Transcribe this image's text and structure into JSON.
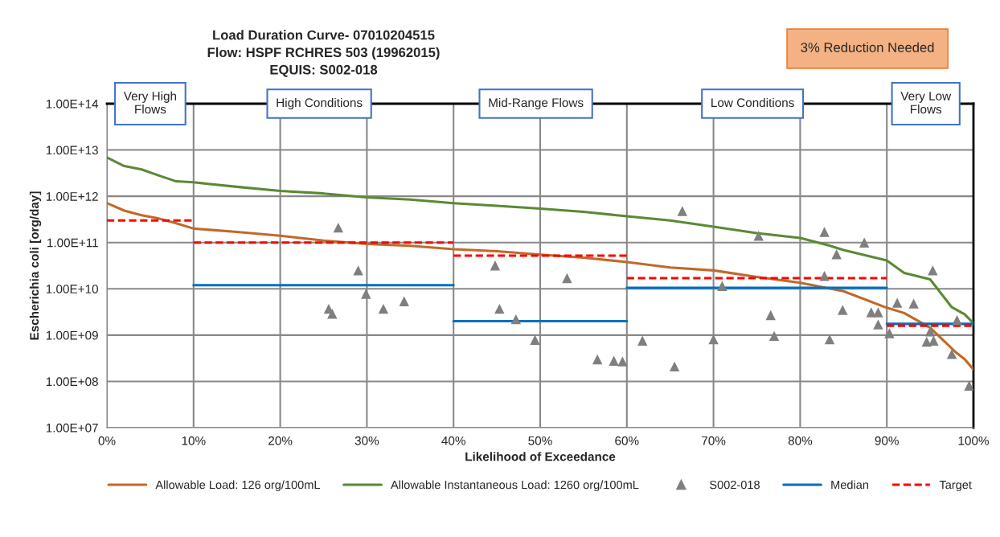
{
  "chart_data": {
    "type": "line",
    "title": "Load Duration Curve- 07010204515\nFlow: HSPF RCHRES 503 (19962015)\nEQUIS: S002-018",
    "xlabel": "Likelihood of Exceedance",
    "ylabel": "Escherichia coli [org/day]",
    "log": "y",
    "grid": true,
    "legend": "bottom",
    "xlim": [
      0,
      100
    ],
    "xticks": [
      {
        "value": 0,
        "label": "0%"
      },
      {
        "value": 10,
        "label": "10%"
      },
      {
        "value": 20,
        "label": "20%"
      },
      {
        "value": 30,
        "label": "30%"
      },
      {
        "value": 40,
        "label": "40%"
      },
      {
        "value": 50,
        "label": "50%"
      },
      {
        "value": 60,
        "label": "60%"
      },
      {
        "value": 70,
        "label": "70%"
      },
      {
        "value": 80,
        "label": "80%"
      },
      {
        "value": 90,
        "label": "90%"
      },
      {
        "value": 100,
        "label": "100%"
      }
    ],
    "ylim": [
      10000000.0,
      100000000000000.0
    ],
    "yticks": [
      {
        "value": 10000000.0,
        "label": "1.00E+07"
      },
      {
        "value": 100000000.0,
        "label": "1.00E+08"
      },
      {
        "value": 1000000000.0,
        "label": "1.00E+09"
      },
      {
        "value": 10000000000.0,
        "label": "1.00E+10"
      },
      {
        "value": 100000000000.0,
        "label": "1.00E+11"
      },
      {
        "value": 1000000000000.0,
        "label": "1.00E+12"
      },
      {
        "value": 10000000000000.0,
        "label": "1.00E+13"
      },
      {
        "value": 100000000000000.0,
        "label": "1.00E+14"
      }
    ],
    "series": [
      {
        "name": "Allowable Load: 126 org/100mL",
        "color": "#c0692a",
        "line_style": "solid",
        "x": [
          0,
          2,
          4,
          6,
          8,
          10,
          15,
          20,
          25,
          30,
          35,
          40,
          45,
          50,
          55,
          60,
          65,
          70,
          75,
          80,
          85,
          90,
          92,
          95,
          98,
          99,
          100
        ],
        "values": [
          710000000000.0,
          490000000000.0,
          390000000000.0,
          330000000000.0,
          260000000000.0,
          200000000000.0,
          170000000000.0,
          140000000000.0,
          110000000000.0,
          93000000000.0,
          85000000000.0,
          72000000000.0,
          65000000000.0,
          55000000000.0,
          47000000000.0,
          38000000000.0,
          29000000000.0,
          25000000000.0,
          18000000000.0,
          13500000000.0,
          8900000000.0,
          3900000000.0,
          3000000000.0,
          1450000000.0,
          420000000.0,
          300000000.0,
          180000000.0
        ]
      },
      {
        "name": "Allowable Instantaneous Load: 1260 org/100mL",
        "color": "#5a8a34",
        "line_style": "solid",
        "x": [
          0,
          2,
          4,
          6,
          8,
          10,
          15,
          20,
          25,
          30,
          35,
          40,
          45,
          50,
          55,
          60,
          65,
          70,
          75,
          80,
          83.3,
          85,
          90,
          92,
          95,
          97.5,
          99,
          100
        ],
        "values": [
          6900000000000.0,
          4500000000000.0,
          3800000000000.0,
          2800000000000.0,
          2100000000000.0,
          2000000000000.0,
          1600000000000.0,
          1300000000000.0,
          1150000000000.0,
          950000000000.0,
          850000000000.0,
          710000000000.0,
          620000000000.0,
          540000000000.0,
          460000000000.0,
          370000000000.0,
          300000000000.0,
          220000000000.0,
          160000000000.0,
          126000000000.0,
          87000000000.0,
          69000000000.0,
          41000000000.0,
          22000000000.0,
          16000000000.0,
          4000000000.0,
          2800000000.0,
          1800000000.0
        ]
      },
      {
        "name": "S002-018",
        "type": "scatter",
        "color": "#7f7f7f",
        "marker": "triangle",
        "x": [
          26.7,
          29.0,
          29.9,
          25.6,
          26.0,
          31.9,
          34.3,
          44.8,
          53.1,
          45.3,
          47.2,
          49.4,
          56.6,
          58.5,
          59.5,
          61.8,
          65.5,
          66.4,
          71.0,
          70.0,
          75.2,
          76.6,
          77.0,
          82.8,
          87.4,
          84.2,
          82.8,
          83.4,
          84.9,
          88.2,
          89.0,
          89.0,
          90.3,
          91.2,
          93.1,
          95.3,
          95.0,
          94.6,
          95.4,
          97.5,
          98.1,
          99.5
        ],
        "values": [
          210000000000.0,
          25000000000.0,
          7800000000.0,
          3700000000.0,
          2900000000.0,
          3700000000.0,
          5400000000.0,
          32000000000.0,
          17000000000.0,
          3700000000.0,
          2200000000.0,
          790000000.0,
          300000000.0,
          280000000.0,
          270000000.0,
          760000000.0,
          210000000.0,
          480000000000.0,
          11500000000.0,
          810000000.0,
          140000000000.0,
          2700000000.0,
          960000000.0,
          170000000000.0,
          100000000000.0,
          56000000000.0,
          19000000000.0,
          810000000.0,
          3500000000.0,
          3100000000.0,
          3100000000.0,
          1700000000.0,
          1100000000.0,
          5000000000.0,
          4800000000.0,
          25000000000.0,
          1200000000.0,
          720000000.0,
          760000000.0,
          390000000.0,
          2100000000.0,
          81000000.0
        ]
      },
      {
        "name": "Median",
        "color": "#0070c0",
        "line_style": "solid",
        "x": [
          10,
          40
        ],
        "values": [
          12000000000.0,
          12000000000.0
        ]
      },
      {
        "color": "#0070c0",
        "line_style": "solid",
        "x": [
          40,
          60
        ],
        "values": [
          2000000000.0,
          2000000000.0
        ]
      },
      {
        "color": "#0070c0",
        "line_style": "solid",
        "x": [
          60,
          90
        ],
        "values": [
          10500000000.0,
          10500000000.0
        ]
      },
      {
        "color": "#0070c0",
        "line_style": "solid",
        "x": [
          90,
          100
        ],
        "values": [
          1750000000.0,
          1750000000.0
        ]
      },
      {
        "name": "Target",
        "color": "#ff0000",
        "line_style": "dashed",
        "x": [
          0,
          10
        ],
        "values": [
          300000000000.0,
          300000000000.0
        ]
      },
      {
        "color": "#ff0000",
        "line_style": "dashed",
        "x": [
          10,
          40
        ],
        "values": [
          100000000000.0,
          100000000000.0
        ]
      },
      {
        "color": "#ff0000",
        "line_style": "dashed",
        "x": [
          40,
          60
        ],
        "values": [
          52000000000.0,
          52000000000.0
        ]
      },
      {
        "color": "#ff0000",
        "line_style": "dashed",
        "x": [
          60,
          90
        ],
        "values": [
          17000000000.0,
          17000000000.0
        ]
      },
      {
        "color": "#ff0000",
        "line_style": "dashed",
        "x": [
          90,
          100
        ],
        "values": [
          1600000000.0,
          1600000000.0
        ]
      }
    ],
    "annotations": [
      "Very High\nFlows",
      "High Conditions",
      "Mid-Range Flows",
      "Low Conditions",
      "Very Low\nFlows",
      "3% Reduction Needed"
    ]
  }
}
